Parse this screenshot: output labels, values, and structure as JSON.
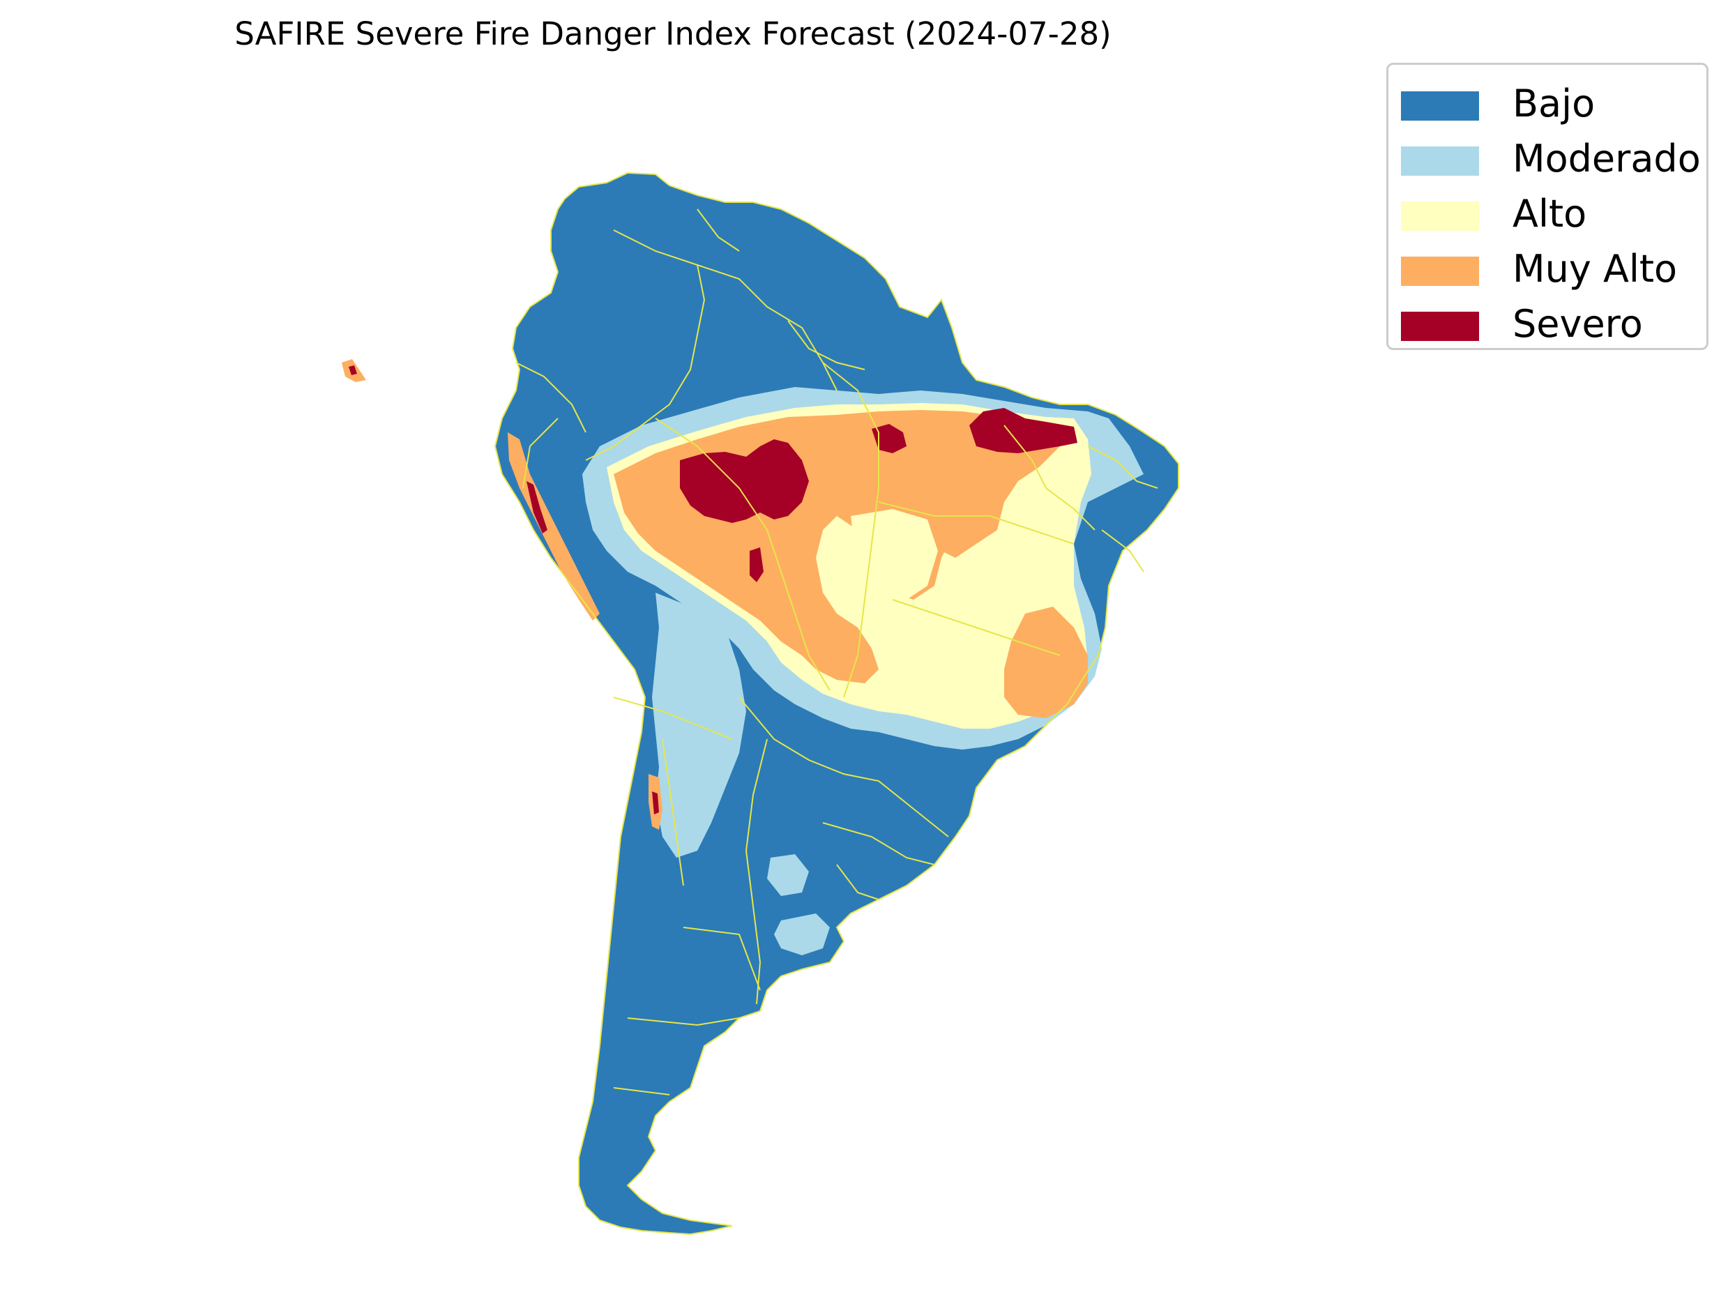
{
  "title": "SAFIRE Severe Fire Danger Index Forecast (2024-07-28)",
  "legend": {
    "items": [
      {
        "label": "Bajo",
        "color": "#2c7bb6"
      },
      {
        "label": "Moderado",
        "color": "#abd9e9"
      },
      {
        "label": "Alto",
        "color": "#ffffbf"
      },
      {
        "label": "Muy Alto",
        "color": "#fdae61"
      },
      {
        "label": "Severo",
        "color": "#a50026"
      }
    ]
  },
  "colors": {
    "border": "#e6e64a",
    "background": "#ffffff"
  }
}
